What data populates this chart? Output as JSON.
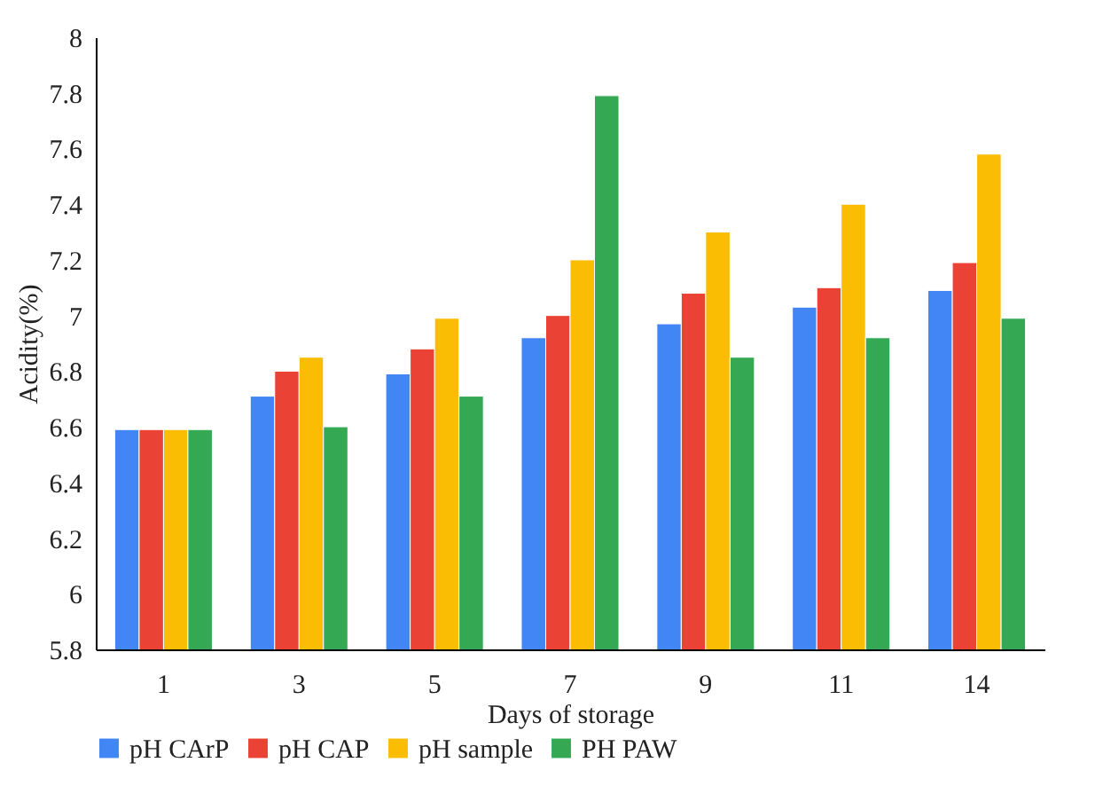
{
  "chart_data": {
    "type": "bar",
    "xlabel": "Days of storage",
    "ylabel": "Acidity(%)",
    "categories": [
      "1",
      "3",
      "5",
      "7",
      "9",
      "11",
      "14"
    ],
    "series": [
      {
        "name": "pH CArP",
        "color": "#4285f4",
        "values": [
          6.59,
          6.71,
          6.79,
          6.92,
          6.97,
          7.03,
          7.09
        ]
      },
      {
        "name": "pH CAP",
        "color": "#ea4335",
        "values": [
          6.59,
          6.8,
          6.88,
          7.0,
          7.08,
          7.1,
          7.19
        ]
      },
      {
        "name": "pH sample",
        "color": "#fbbc04",
        "values": [
          6.59,
          6.85,
          6.99,
          7.2,
          7.3,
          7.4,
          7.58
        ]
      },
      {
        "name": "PH PAW",
        "color": "#34a853",
        "values": [
          6.59,
          6.6,
          6.71,
          7.79,
          6.85,
          6.92,
          6.99
        ]
      }
    ],
    "ylim": [
      5.8,
      8
    ],
    "yticks": [
      5.8,
      6,
      6.2,
      6.4,
      6.6,
      6.8,
      7,
      7.2,
      7.4,
      7.6,
      7.8,
      8
    ],
    "grid": false,
    "legend": "bottom"
  }
}
